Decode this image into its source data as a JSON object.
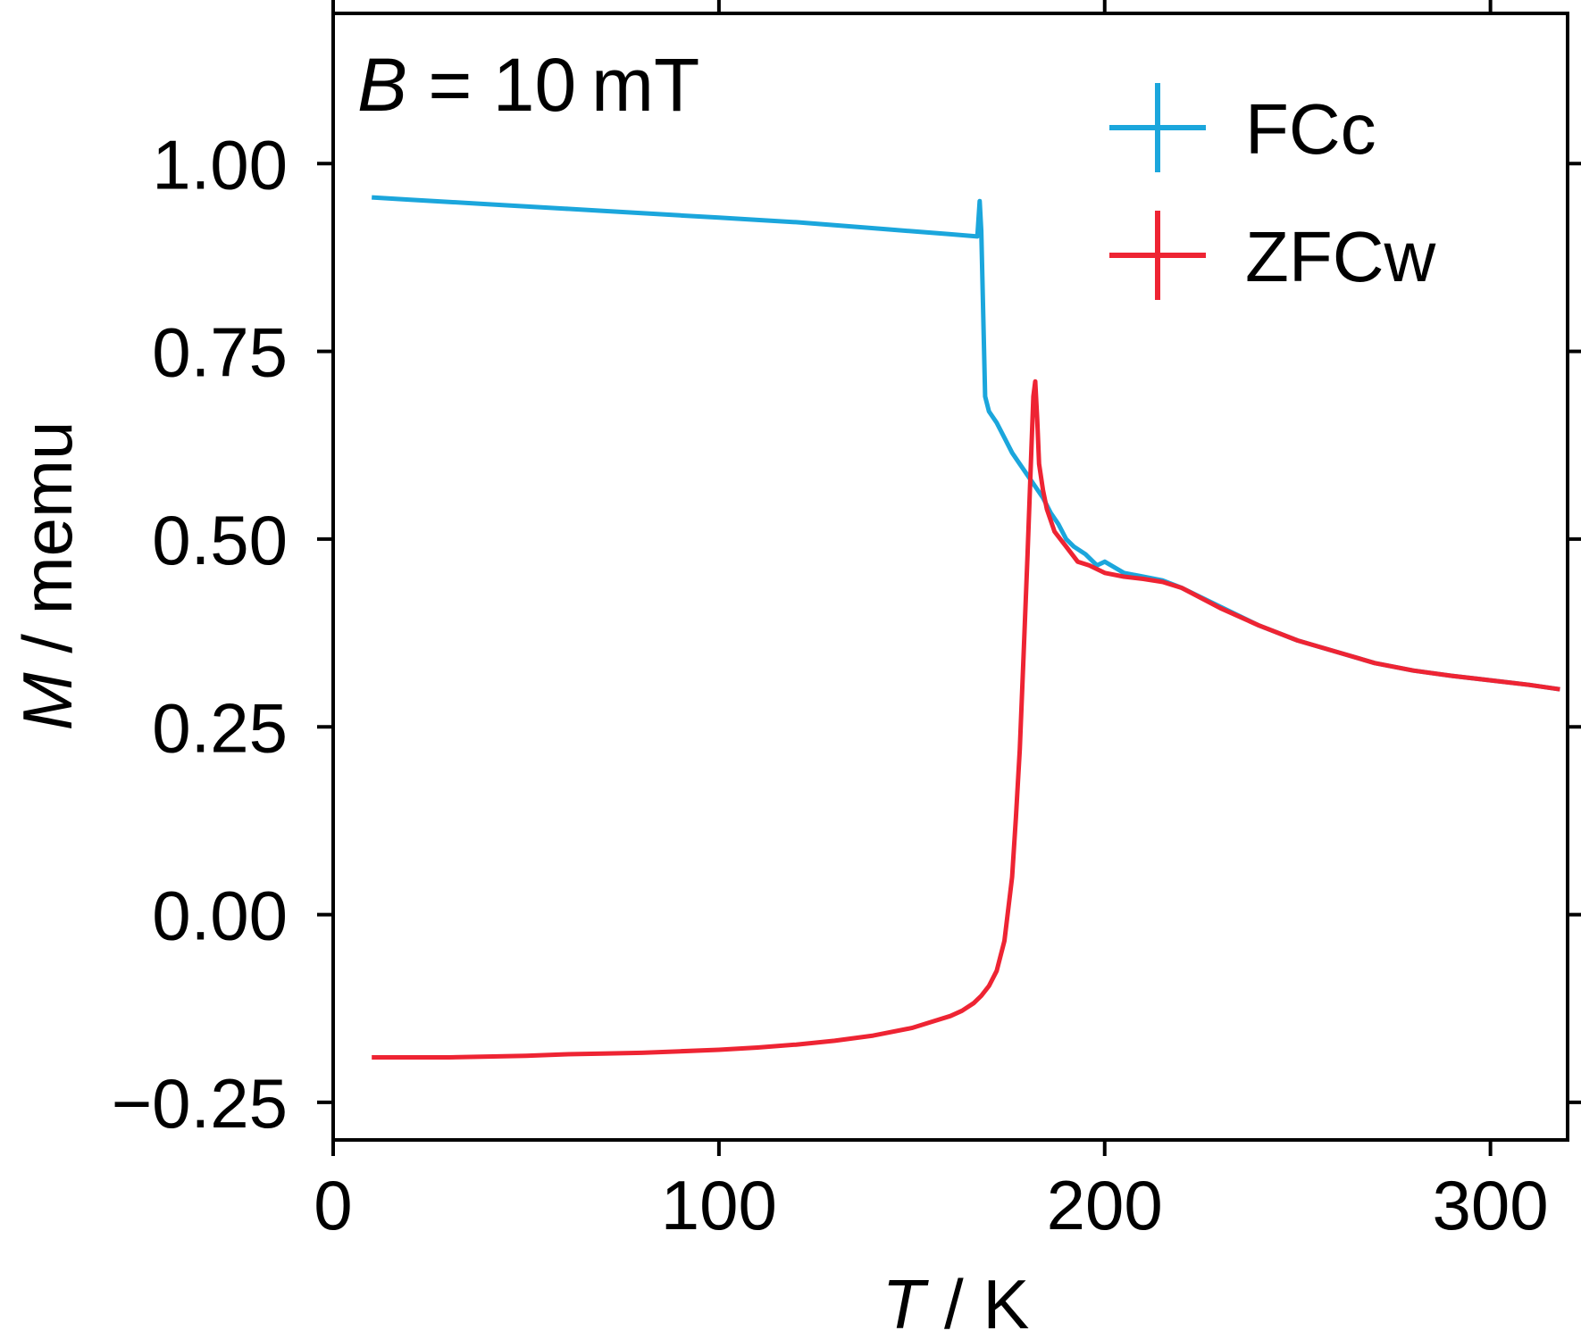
{
  "chart_data": {
    "type": "line",
    "annotation": {
      "symbol": "B",
      "text": " = 10 mT"
    },
    "xlabel": {
      "symbol": "T",
      "unit": "K"
    },
    "ylabel": {
      "symbol": "M",
      "unit": "memu"
    },
    "xlim": [
      0,
      320
    ],
    "ylim": [
      -0.3,
      1.2
    ],
    "x_ticks": [
      0,
      100,
      200,
      300
    ],
    "x_tick_labels": [
      "0",
      "100",
      "200",
      "300"
    ],
    "y_ticks": [
      -0.25,
      0,
      0.25,
      0.5,
      0.75,
      1.0
    ],
    "y_tick_labels": [
      "−0.25",
      "0.00",
      "0.25",
      "0.50",
      "0.75",
      "1.00"
    ],
    "grid": false,
    "legend_position": "top-right",
    "series": [
      {
        "name": "FCc",
        "color": "#1ba6dc",
        "x": [
          10,
          20,
          30,
          40,
          50,
          60,
          70,
          80,
          90,
          100,
          110,
          120,
          130,
          140,
          150,
          160,
          167,
          167.6,
          168,
          169,
          170,
          172,
          174,
          176,
          178,
          180,
          182,
          184,
          186,
          188,
          190,
          192,
          195,
          198,
          200,
          205,
          210,
          215,
          220,
          230,
          240,
          250,
          260,
          270,
          280,
          290,
          300,
          310,
          318
        ],
        "y": [
          0.955,
          0.952,
          0.949,
          0.946,
          0.943,
          0.94,
          0.937,
          0.934,
          0.931,
          0.928,
          0.925,
          0.922,
          0.918,
          0.914,
          0.91,
          0.906,
          0.903,
          0.95,
          0.91,
          0.69,
          0.67,
          0.655,
          0.635,
          0.615,
          0.6,
          0.585,
          0.57,
          0.555,
          0.535,
          0.52,
          0.5,
          0.49,
          0.48,
          0.465,
          0.47,
          0.455,
          0.45,
          0.445,
          0.435,
          0.41,
          0.385,
          0.365,
          0.35,
          0.335,
          0.325,
          0.318,
          0.312,
          0.306,
          0.3
        ]
      },
      {
        "name": "ZFCw",
        "color": "#ee2433",
        "x": [
          10,
          20,
          30,
          40,
          50,
          60,
          70,
          80,
          90,
          100,
          110,
          120,
          130,
          140,
          150,
          155,
          160,
          163,
          166,
          168,
          170,
          172,
          174,
          176,
          177,
          178,
          179,
          180,
          181,
          181.5,
          182,
          182.5,
          183,
          184,
          185,
          187,
          190,
          193,
          196,
          200,
          205,
          210,
          215,
          220,
          230,
          240,
          250,
          260,
          270,
          280,
          290,
          300,
          310,
          318
        ],
        "y": [
          -0.19,
          -0.19,
          -0.19,
          -0.189,
          -0.188,
          -0.186,
          -0.185,
          -0.184,
          -0.182,
          -0.18,
          -0.177,
          -0.173,
          -0.168,
          -0.161,
          -0.151,
          -0.143,
          -0.135,
          -0.128,
          -0.118,
          -0.108,
          -0.095,
          -0.075,
          -0.035,
          0.05,
          0.13,
          0.22,
          0.35,
          0.48,
          0.62,
          0.69,
          0.71,
          0.66,
          0.6,
          0.565,
          0.54,
          0.51,
          0.49,
          0.47,
          0.465,
          0.455,
          0.45,
          0.447,
          0.443,
          0.435,
          0.408,
          0.385,
          0.365,
          0.35,
          0.335,
          0.325,
          0.318,
          0.312,
          0.306,
          0.3
        ]
      }
    ]
  }
}
